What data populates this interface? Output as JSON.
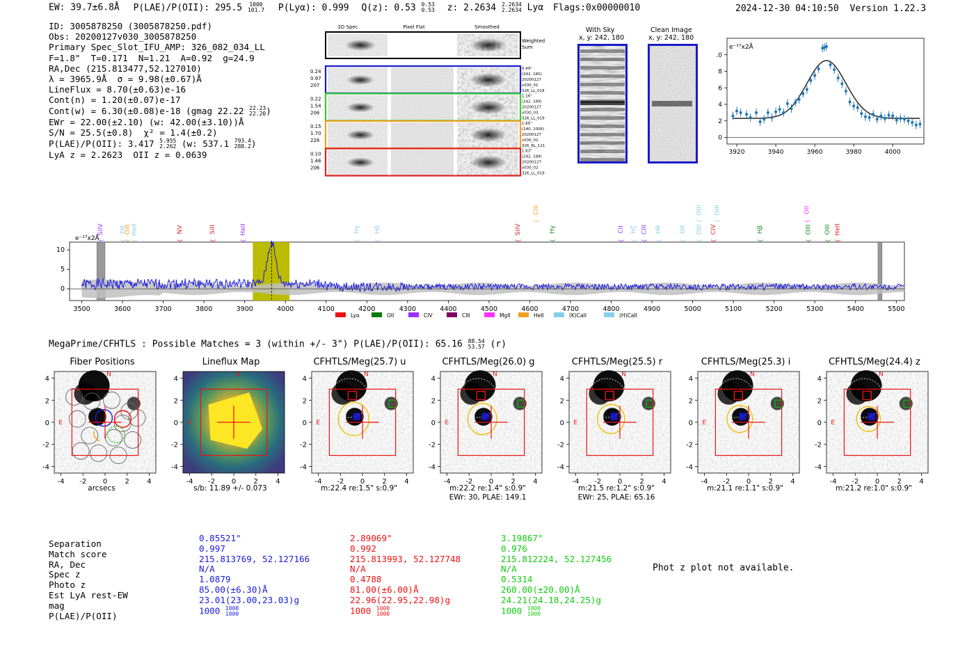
{
  "header": {
    "ew_label": "EW: 39.7±6.8Å",
    "plae_label": "P(LAE)/P(OII): 295.5",
    "plae_hi": "1000",
    "plae_lo": "101.7",
    "plya_label": "P(Lyα): 0.999",
    "qz_label": "Q(z): 0.53",
    "qz_hi": "0.53",
    "qz_lo": "0.53",
    "z_label": "z: 2.2634",
    "z_hi": "2.2634",
    "z_lo": "2.2634",
    "z_line": "Lyα",
    "flags": "Flags:0x00000010",
    "timestamp": "2024-12-30 04:10:50",
    "version": "Version 1.22.3"
  },
  "info": {
    "id": "ID: 3005878250 (3005878250.pdf)",
    "obs": "Obs: 20200127v030_3005878250",
    "primary": "Primary Spec_Slot_IFU_AMP: 326_082_034_LL",
    "fparams": "F=1.8\"  T=0.171  N=1.21  A=0.92  g=24.9",
    "radec": "RA,Dec (215.813477,52.127010)",
    "lambda": "λ = 3965.9Å  σ = 9.98(±0.67)Å",
    "lineflux": "LineFlux = 8.70(±0.63)e-16",
    "contn": "Cont(n) = 1.20(±0.07)e-17",
    "contw": "Cont(w) = 6.30(±0.08)e-18 (gmag 22.22",
    "contw_hi": "22.23",
    "contw_lo": "22.20",
    "contw_end": ")",
    "ewr": "EWr = 22.00(±2.10) (w: 42.00(±3.10))Å",
    "sn": "S/N = 25.5(±0.8)  χ² = 1.4(±0.2)",
    "plae": "P(LAE)/P(OII): 3.417",
    "plae_hi": "5.955",
    "plae_lo": "2.262",
    "plae_w": "(w: 537.1",
    "plae_w_hi": "793.4",
    "plae_w_lo": "288.2",
    "plae_w_end": ")",
    "lya_z": "LyA z = 2.2623  OII z = 0.0639"
  },
  "spec2d": {
    "col_labels": [
      "2D Spec",
      "Pixel Flat",
      "Smoothed"
    ],
    "weighted_label_1": "Weighted",
    "weighted_label_2": "Sum",
    "rows": [
      {
        "left": [
          "0.24",
          "0.97",
          "207"
        ],
        "right": [
          "0.49\"",
          "(242, 180)",
          "20200127",
          "v030_01",
          "326_LL_018"
        ],
        "color": "#1a1acc"
      },
      {
        "left": [
          "0.22",
          "1.54",
          "206"
        ],
        "right": [
          "1.16\"",
          "(242, 189)",
          "20200127",
          "v030_03",
          "326_LL_019"
        ],
        "color": "#33cc33"
      },
      {
        "left": [
          "0.15",
          "1.70",
          "226"
        ],
        "right": [
          "1.65\"",
          "(240, 1006)",
          "20200127",
          "v030_02",
          "326_RL_111"
        ],
        "color": "#f0a020"
      },
      {
        "left": [
          "0.10",
          "1.46",
          "206"
        ],
        "right": [
          "1.63\"",
          "(242, 189)",
          "20200127",
          "v030_02",
          "326_LL_019"
        ],
        "color": "#dd2222"
      }
    ]
  },
  "sky_panels": {
    "with_sky_title": "With Sky",
    "with_sky_xy": "x, y: 242, 180",
    "clean_title": "Clean Image",
    "clean_xy": "x, y: 242, 180"
  },
  "zoom_plot": {
    "ylabel_unit": "e⁻¹⁷x2Å",
    "x_ticks": [
      "3920",
      "3940",
      "3960",
      "3980",
      "4000"
    ],
    "y_ticks": [
      "0",
      "2",
      "4",
      "6",
      "8",
      "10"
    ]
  },
  "spectrum": {
    "unit": "e⁻¹⁷x2Å",
    "y_ticks": [
      "0",
      "5",
      "10"
    ],
    "x_ticks": [
      "3500",
      "3600",
      "3700",
      "3800",
      "3900",
      "4000",
      "4100",
      "4200",
      "4300",
      "4400",
      "4500",
      "4600",
      "4700",
      "4800",
      "4900",
      "5000",
      "5100",
      "5200",
      "5300",
      "5400",
      "5500"
    ],
    "line_marks": [
      {
        "label": "SiIV",
        "color": "#9b30ff",
        "row": 1
      },
      {
        "label": "OII",
        "color": "#87ceeb",
        "row": 1
      },
      {
        "label": "OIII",
        "color": "#f0a020",
        "row": 1
      },
      {
        "label": "HeII",
        "color": "#87ceeb",
        "row": 1
      },
      {
        "label": "NV",
        "color": "#dd2222",
        "row": 1
      },
      {
        "label": "SiII",
        "color": "#dd2222",
        "row": 1
      },
      {
        "label": "HeII",
        "color": "#9b30ff",
        "row": 1
      },
      {
        "label": "Hγ",
        "color": "#87ceeb",
        "row": 1
      },
      {
        "label": "Hδ",
        "color": "#87ceeb",
        "row": 1
      },
      {
        "label": "SiIV",
        "color": "#dd2222",
        "row": 1
      },
      {
        "label": "CIII",
        "color": "#f0a020",
        "row": 0
      },
      {
        "label": "Hγ",
        "color": "#1a8c1a",
        "row": 1
      },
      {
        "label": "CII",
        "color": "#9b30ff",
        "row": 1
      },
      {
        "label": "Hζ",
        "color": "#87ceeb",
        "row": 1
      },
      {
        "label": "CIII",
        "color": "#9b30ff",
        "row": 1
      },
      {
        "label": "Hθ",
        "color": "#87ceeb",
        "row": 1
      },
      {
        "label": "OII",
        "color": "#87ceeb",
        "row": 1
      },
      {
        "label": "OIII",
        "color": "#87ceeb",
        "row": 1
      },
      {
        "label": "OIII",
        "color": "#87ceeb",
        "row": 0
      },
      {
        "label": "CIV",
        "color": "#dd2222",
        "row": 1
      },
      {
        "label": "OIII",
        "color": "#87ceeb",
        "row": 0
      },
      {
        "label": "Hβ",
        "color": "#1a8c1a",
        "row": 1
      },
      {
        "label": "OII",
        "color": "#ff33ff",
        "row": 0
      },
      {
        "label": "OIII",
        "color": "#1a8c1a",
        "row": 1
      },
      {
        "label": "OIII",
        "color": "#1a8c1a",
        "row": 1
      },
      {
        "label": "HeII",
        "color": "#dd2222",
        "row": 1
      }
    ],
    "legend": [
      {
        "label": "Lyα",
        "color": "#ee1111"
      },
      {
        "label": "OII",
        "color": "#0a7a0a"
      },
      {
        "label": "CIV",
        "color": "#9b30ff"
      },
      {
        "label": "CIII",
        "color": "#800060"
      },
      {
        "label": "MgII",
        "color": "#ff33ff"
      },
      {
        "label": "HeII",
        "color": "#f0a020"
      },
      {
        "label": "(K)CaII",
        "color": "#87ceeb"
      },
      {
        "label": "(H)CaII",
        "color": "#87ceeb"
      }
    ]
  },
  "chart_data": [
    {
      "type": "line",
      "title": "",
      "xlabel": "",
      "ylabel": "e⁻¹⁷x2Å",
      "xlim": [
        3500,
        5520
      ],
      "ylim": [
        -3,
        12
      ],
      "highlight_band": [
        3920,
        4010
      ],
      "line_center": 3966,
      "masked_regions": [
        [
          3537,
          3557
        ],
        [
          5455,
          5465
        ]
      ],
      "series": [
        {
          "name": "flux",
          "x": [
            3500,
            3900,
            3930,
            3950,
            3960,
            3966,
            3975,
            3990,
            4010,
            4100,
            4500,
            5000,
            5500
          ],
          "values": [
            1.5,
            1.5,
            3,
            5,
            9,
            12,
            8,
            4,
            2,
            1.5,
            0.5,
            0.5,
            0.5
          ]
        }
      ]
    },
    {
      "type": "scatter",
      "title": "",
      "xlabel": "",
      "ylabel": "e⁻¹⁷x2Å",
      "xlim": [
        3915,
        4016
      ],
      "ylim": [
        -0.8,
        12
      ],
      "series": [
        {
          "name": "data",
          "x": [
            3918,
            3920,
            3922,
            3925,
            3927,
            3930,
            3932,
            3934,
            3936,
            3938,
            3940,
            3942,
            3944,
            3946,
            3948,
            3950,
            3952,
            3954,
            3956,
            3958,
            3960,
            3962,
            3964,
            3965,
            3966,
            3968,
            3970,
            3972,
            3974,
            3976,
            3978,
            3980,
            3982,
            3984,
            3986,
            3988,
            3990,
            3992,
            3994,
            3996,
            3998,
            4000,
            4002,
            4004,
            4006,
            4008,
            4010,
            4012,
            4014
          ],
          "values": [
            2.6,
            3.2,
            3.0,
            2.8,
            2.4,
            3.0,
            1.9,
            2.2,
            3.0,
            2.4,
            3.1,
            3.4,
            3.0,
            4.1,
            3.5,
            4.2,
            4.6,
            5.3,
            5.8,
            6.9,
            7.5,
            8.3,
            10.8,
            10.9,
            11.0,
            8.8,
            8.2,
            7.2,
            6.5,
            5.6,
            4.3,
            3.8,
            3.6,
            2.9,
            2.5,
            2.4,
            2.8,
            2.2,
            2.6,
            2.3,
            2.7,
            2.6,
            2.1,
            2.3,
            2.2,
            2.0,
            1.8,
            1.5,
            1.6
          ]
        },
        {
          "name": "fit",
          "x": [
            3918,
            3940,
            3950,
            3958,
            3966,
            3974,
            3982,
            3990,
            4014
          ],
          "values": [
            2.3,
            2.5,
            3.5,
            6.0,
            9.3,
            7.5,
            4.2,
            2.8,
            2.3
          ]
        }
      ]
    }
  ],
  "megaprime": {
    "title": "MegaPrime/CFHTLS : Possible Matches = 3 (within +/- 3\")  P(LAE)/P(OII): 65.16",
    "plae_hi": "88.54",
    "plae_lo": "53.57",
    "plae_suffix": "(r)",
    "axis_ticks": [
      "-4",
      "-2",
      "0",
      "2",
      "4"
    ],
    "cutouts": [
      {
        "title": "Fiber Positions",
        "caption1": "arcsecs",
        "caption2": ""
      },
      {
        "title": "Lineflux Map",
        "caption1": "s/b: 11.89 +/- 0.073",
        "caption2": ""
      },
      {
        "title": "CFHTLS/Meg(25.7) u",
        "caption1": "m:22.4  re:1.5\"  s:0.9\"",
        "caption2": ""
      },
      {
        "title": "CFHTLS/Meg(26.0) g",
        "caption1": "m:22.2  re:1.4\"  s:0.9\"",
        "caption2": "EWr: 30, PLAE: 149.1"
      },
      {
        "title": "CFHTLS/Meg(25.5) r",
        "caption1": "m:21.5  re:1.2\"  s:0.9\"",
        "caption2": "EWr: 25, PLAE: 65.16"
      },
      {
        "title": "CFHTLS/Meg(25.3) i",
        "caption1": "m:21.1  re:1.1\"  s:0.9\"",
        "caption2": ""
      },
      {
        "title": "CFHTLS/Meg(24.4) z",
        "caption1": "m:21.2  re:1.0\"  s:0.9\"",
        "caption2": ""
      }
    ],
    "compass_n": "N",
    "compass_e": "E"
  },
  "matches": {
    "labels": [
      "Separation",
      "Match score",
      "RA, Dec",
      "Spec z",
      "Photo z",
      "Est LyA rest-EW",
      "mag",
      "P(LAE)/P(OII)"
    ],
    "columns": [
      {
        "color": "#1a1add",
        "values": [
          "0.85521\"",
          "0.997",
          "215.813769, 52.127166",
          "N/A",
          "1.0879",
          "85.00(±6.30)Å",
          "23.01(23.00,23.03)g",
          "1000"
        ],
        "plae_hi": "1000",
        "plae_lo": "1000"
      },
      {
        "color": "#ee1111",
        "values": [
          "2.89069\"",
          "0.992",
          "215.813993, 52.127748",
          "N/A",
          "0.4788",
          "81.00(±6.00)Å",
          "22.96(22.95,22.98)g",
          "1000"
        ],
        "plae_hi": "1000",
        "plae_lo": "1000"
      },
      {
        "color": "#11cc11",
        "values": [
          "3.19867\"",
          "0.976",
          "215.812224, 52.127456",
          "N/A",
          "0.5314",
          "260.00(±20.00)Å",
          "24.21(24.18,24.25)g",
          "1000"
        ],
        "plae_hi": "1000",
        "plae_lo": "1000"
      }
    ],
    "phot_z_note": "Phot z plot not available."
  }
}
